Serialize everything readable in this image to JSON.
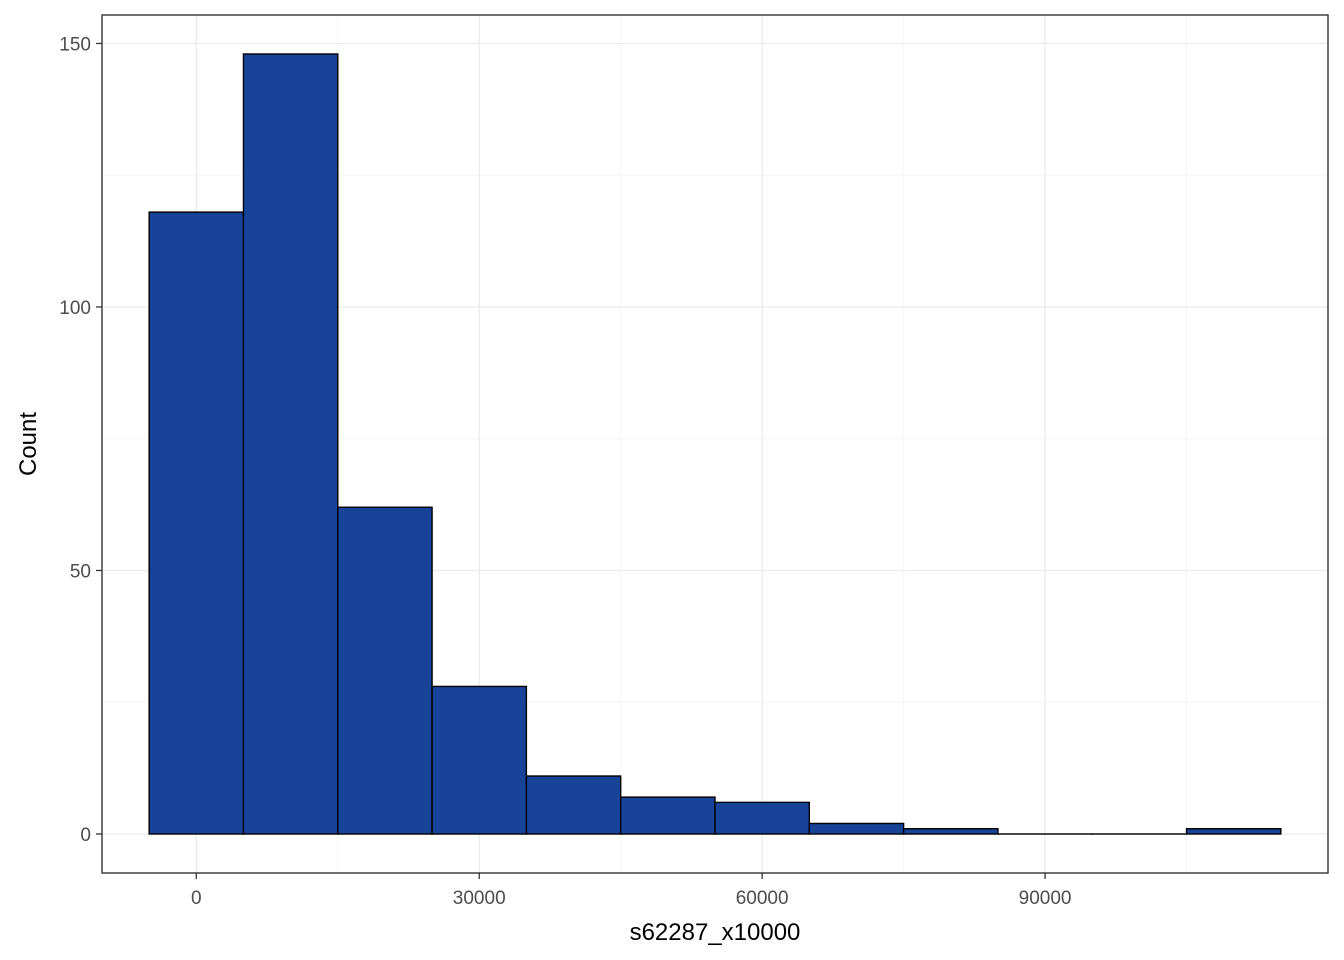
{
  "chart_data": {
    "type": "bar",
    "xlabel": "s62287_x10000",
    "ylabel": "Count",
    "bin_width": 10000,
    "bins": [
      {
        "start": -5000,
        "end": 5000,
        "count": 118
      },
      {
        "start": 5000,
        "end": 15000,
        "count": 148
      },
      {
        "start": 15000,
        "end": 25000,
        "count": 62
      },
      {
        "start": 25000,
        "end": 35000,
        "count": 28
      },
      {
        "start": 35000,
        "end": 45000,
        "count": 11
      },
      {
        "start": 45000,
        "end": 55000,
        "count": 7
      },
      {
        "start": 55000,
        "end": 65000,
        "count": 6
      },
      {
        "start": 65000,
        "end": 75000,
        "count": 2
      },
      {
        "start": 75000,
        "end": 85000,
        "count": 1
      },
      {
        "start": 85000,
        "end": 95000,
        "count": 0
      },
      {
        "start": 95000,
        "end": 105000,
        "count": 0
      },
      {
        "start": 105000,
        "end": 115000,
        "count": 1
      }
    ],
    "xlim": [
      -10000,
      120000
    ],
    "ylim": [
      -7.4,
      155.4
    ],
    "x_ticks": [
      0,
      30000,
      60000,
      90000
    ],
    "x_tick_labels": [
      "0",
      "30000",
      "60000",
      "90000"
    ],
    "y_ticks": [
      0,
      50,
      100,
      150
    ],
    "y_tick_labels": [
      "0",
      "50",
      "100",
      "150"
    ],
    "grid": true,
    "legend": "none",
    "colors": {
      "bar_fill": "#174499",
      "bar_outline": "#000000",
      "grid_major": "#ebebeb",
      "grid_minor": "#f5f5f5",
      "panel_border": "#333333",
      "tick_text": "#4d4d4d"
    }
  }
}
